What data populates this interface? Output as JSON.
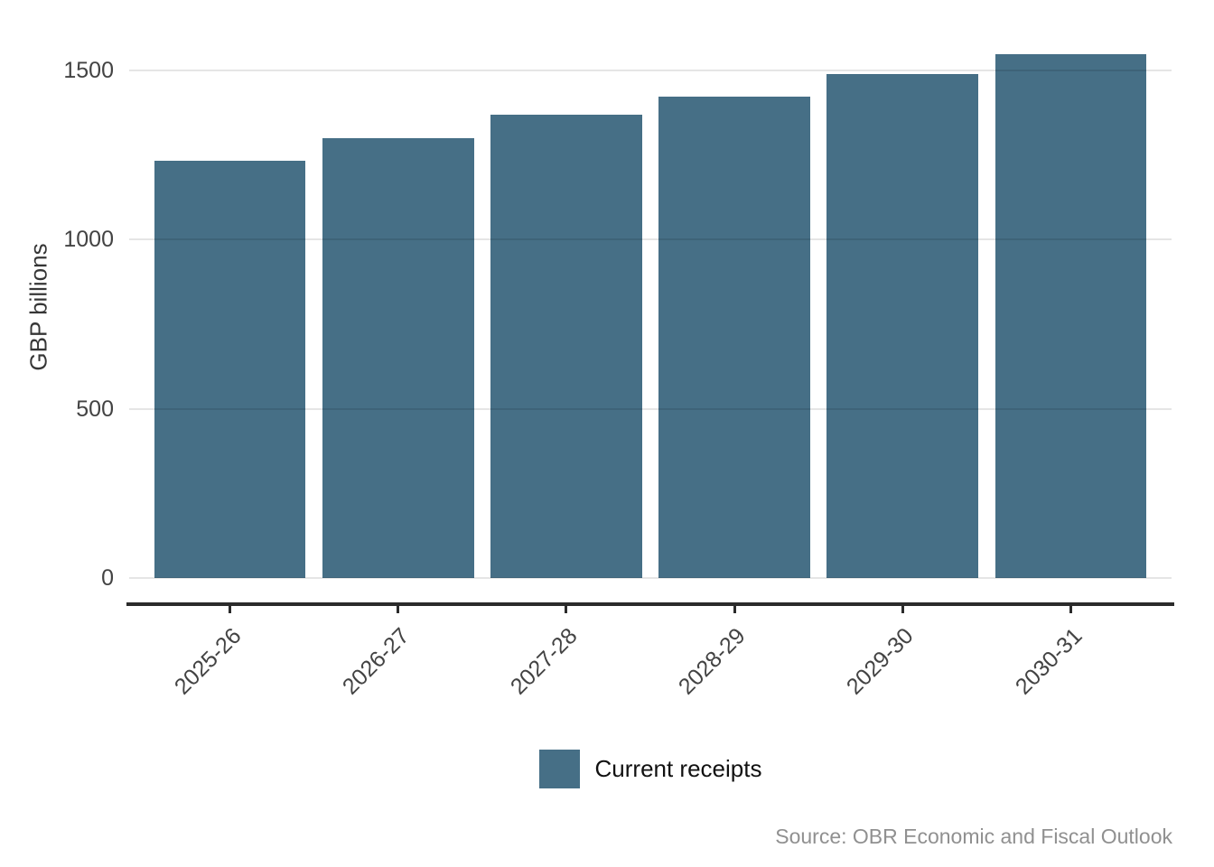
{
  "chart_data": {
    "type": "bar",
    "categories": [
      "2025-26",
      "2026-27",
      "2027-28",
      "2028-29",
      "2029-30",
      "2030-31"
    ],
    "series": [
      {
        "name": "Current receipts",
        "values": [
          1233,
          1301,
          1370,
          1423,
          1489,
          1548
        ]
      }
    ],
    "title": "",
    "xlabel": "",
    "ylabel": "GBP billions",
    "yticks": [
      0,
      500,
      1000,
      1500
    ],
    "ylim": [
      0,
      1628
    ],
    "grid": "horizontal-only",
    "legend_position": "bottom-center",
    "bar_color": "#466F86"
  },
  "legend": {
    "label": "Current receipts",
    "swatch_color": "#466F86"
  },
  "source_note": "Source: OBR Economic and Fiscal Outlook",
  "colors": {
    "bar": "#466F86",
    "axis_line": "#2b2b2b",
    "tick_label_text": "#434343",
    "gridline": "#e5e5e5",
    "source_text": "#909090",
    "background": "#ffffff"
  }
}
